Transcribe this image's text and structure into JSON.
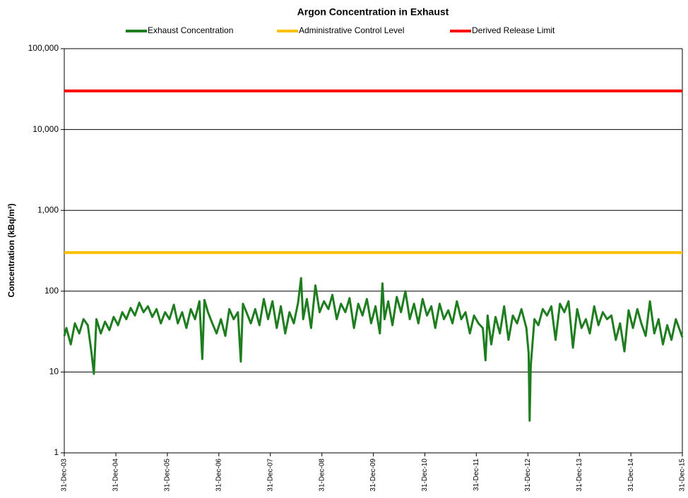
{
  "chart_data": {
    "type": "line",
    "title": "Argon Concentration in Exhaust",
    "y_label": "Concentration (kBq/m³)",
    "log_y": true,
    "grid": true,
    "legend": "top",
    "xlim": [
      "2003-12-31",
      "2015-12-31"
    ],
    "xticks": [
      {
        "value": "2003-12-31",
        "label": "31-Dec-03"
      },
      {
        "value": "2004-12-31",
        "label": "31-Dec-04"
      },
      {
        "value": "2005-12-31",
        "label": "31-Dec-05"
      },
      {
        "value": "2006-12-31",
        "label": "31-Dec-06"
      },
      {
        "value": "2007-12-31",
        "label": "31-Dec-07"
      },
      {
        "value": "2008-12-31",
        "label": "31-Dec-08"
      },
      {
        "value": "2009-12-31",
        "label": "31-Dec-09"
      },
      {
        "value": "2010-12-31",
        "label": "31-Dec-10"
      },
      {
        "value": "2011-12-31",
        "label": "31-Dec-11"
      },
      {
        "value": "2012-12-31",
        "label": "31-Dec-12"
      },
      {
        "value": "2013-12-31",
        "label": "31-Dec-13"
      },
      {
        "value": "2014-12-31",
        "label": "31-Dec-14"
      },
      {
        "value": "2015-12-31",
        "label": "31-Dec-15"
      }
    ],
    "ylim": [
      1,
      100000
    ],
    "yticks": [
      1,
      10,
      100,
      {
        "value": 1000,
        "label": "1,000"
      },
      {
        "value": 10000,
        "label": "10,000"
      },
      {
        "value": 100000,
        "label": "100,000"
      }
    ],
    "series": [
      {
        "name": "Exhaust Concentration",
        "color": "#1e7d1e",
        "x": [
          "2003-12-31",
          "2004-01-15",
          "2004-02-15",
          "2004-03-15",
          "2004-04-15",
          "2004-05-15",
          "2004-06-15",
          "2004-07-10",
          "2004-07-28",
          "2004-08-15",
          "2004-09-15",
          "2004-10-15",
          "2004-11-15",
          "2004-12-15",
          "2005-01-15",
          "2005-02-15",
          "2005-03-15",
          "2005-04-15",
          "2005-05-15",
          "2005-06-15",
          "2005-07-15",
          "2005-08-15",
          "2005-09-15",
          "2005-10-15",
          "2005-11-15",
          "2005-12-15",
          "2006-01-15",
          "2006-02-15",
          "2006-03-15",
          "2006-04-15",
          "2006-05-15",
          "2006-06-15",
          "2006-07-15",
          "2006-08-15",
          "2006-09-05",
          "2006-09-20",
          "2006-10-15",
          "2006-11-15",
          "2006-12-15",
          "2007-01-15",
          "2007-02-15",
          "2007-03-15",
          "2007-04-15",
          "2007-05-15",
          "2007-06-05",
          "2007-06-20",
          "2007-07-15",
          "2007-08-15",
          "2007-09-15",
          "2007-10-15",
          "2007-11-15",
          "2007-12-15",
          "2008-01-15",
          "2008-02-15",
          "2008-03-15",
          "2008-04-15",
          "2008-05-15",
          "2008-06-15",
          "2008-07-15",
          "2008-08-05",
          "2008-08-20",
          "2008-09-15",
          "2008-10-15",
          "2008-11-15",
          "2008-12-15",
          "2009-01-15",
          "2009-02-15",
          "2009-03-15",
          "2009-04-15",
          "2009-05-15",
          "2009-06-15",
          "2009-07-15",
          "2009-08-15",
          "2009-09-15",
          "2009-10-15",
          "2009-11-15",
          "2009-12-15",
          "2010-01-15",
          "2010-02-15",
          "2010-03-05",
          "2010-03-20",
          "2010-04-15",
          "2010-05-15",
          "2010-06-15",
          "2010-07-15",
          "2010-08-15",
          "2010-09-15",
          "2010-10-15",
          "2010-11-15",
          "2010-12-15",
          "2011-01-15",
          "2011-02-15",
          "2011-03-15",
          "2011-04-15",
          "2011-05-15",
          "2011-06-15",
          "2011-07-15",
          "2011-08-15",
          "2011-09-15",
          "2011-10-15",
          "2011-11-15",
          "2011-12-15",
          "2012-01-15",
          "2012-02-15",
          "2012-03-05",
          "2012-03-20",
          "2012-04-15",
          "2012-05-15",
          "2012-06-15",
          "2012-07-15",
          "2012-08-15",
          "2012-09-15",
          "2012-10-15",
          "2012-11-15",
          "2012-12-20",
          "2013-01-05",
          "2013-01-12",
          "2013-01-20",
          "2013-02-15",
          "2013-03-15",
          "2013-04-15",
          "2013-05-15",
          "2013-06-15",
          "2013-07-15",
          "2013-08-15",
          "2013-09-15",
          "2013-10-15",
          "2013-11-15",
          "2013-12-15",
          "2014-01-15",
          "2014-02-15",
          "2014-03-15",
          "2014-04-15",
          "2014-05-15",
          "2014-06-15",
          "2014-07-15",
          "2014-08-15",
          "2014-09-15",
          "2014-10-15",
          "2014-11-15",
          "2014-12-15",
          "2015-01-15",
          "2015-02-15",
          "2015-03-15",
          "2015-04-15",
          "2015-05-15",
          "2015-06-15",
          "2015-07-15",
          "2015-08-15",
          "2015-09-15",
          "2015-10-15",
          "2015-11-15",
          "2015-12-31"
        ],
        "values": [
          28,
          35,
          22,
          40,
          30,
          45,
          38,
          18,
          9.5,
          45,
          30,
          42,
          33,
          48,
          38,
          55,
          45,
          62,
          50,
          72,
          55,
          65,
          48,
          60,
          40,
          55,
          45,
          68,
          40,
          55,
          35,
          60,
          45,
          75,
          14.5,
          78,
          55,
          40,
          30,
          45,
          28,
          60,
          45,
          55,
          13.5,
          70,
          55,
          40,
          60,
          38,
          80,
          45,
          75,
          35,
          65,
          30,
          55,
          40,
          72,
          145,
          45,
          80,
          35,
          118,
          55,
          75,
          60,
          90,
          45,
          70,
          55,
          82,
          35,
          70,
          50,
          80,
          40,
          65,
          30,
          125,
          45,
          75,
          38,
          85,
          55,
          100,
          45,
          70,
          40,
          80,
          50,
          65,
          35,
          70,
          45,
          58,
          40,
          75,
          45,
          55,
          30,
          50,
          40,
          35,
          14,
          50,
          22,
          48,
          30,
          65,
          25,
          50,
          40,
          60,
          35,
          17,
          2.5,
          12,
          45,
          38,
          60,
          50,
          65,
          25,
          70,
          55,
          75,
          20,
          60,
          35,
          45,
          30,
          65,
          38,
          55,
          45,
          50,
          25,
          40,
          18,
          58,
          35,
          60,
          40,
          28,
          75,
          30,
          45,
          22,
          38,
          25,
          45,
          27
        ]
      },
      {
        "name": "Administrative Control Level",
        "color": "#ffc000",
        "x": [
          "2003-12-31",
          "2015-12-31"
        ],
        "values": [
          300,
          300
        ]
      },
      {
        "name": "Derived Release Limit",
        "color": "#ff0000",
        "x": [
          "2003-12-31",
          "2015-12-31"
        ],
        "values": [
          30000,
          30000
        ]
      }
    ]
  }
}
